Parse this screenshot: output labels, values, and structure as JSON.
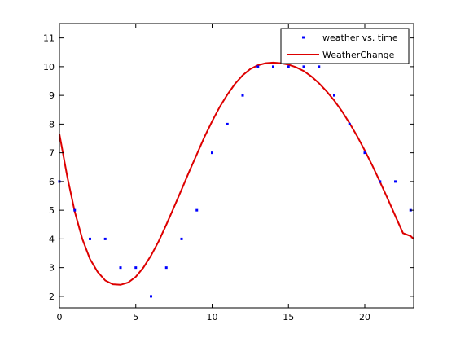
{
  "chart_data": {
    "type": "scatter",
    "title": "",
    "xlabel": "",
    "ylabel": "",
    "xlim": [
      0,
      23.2
    ],
    "ylim": [
      1.6,
      11.5
    ],
    "x_ticks": [
      0,
      5,
      10,
      15,
      20
    ],
    "y_ticks": [
      2,
      3,
      4,
      5,
      6,
      7,
      8,
      9,
      10,
      11
    ],
    "grid": false,
    "legend_position": "top-right",
    "series": [
      {
        "name": "weather vs. time",
        "type": "scatter",
        "color": "#0000ff",
        "x": [
          0,
          1,
          2,
          3,
          4,
          5,
          6,
          7,
          8,
          9,
          10,
          11,
          12,
          13,
          14,
          15,
          16,
          17,
          18,
          19,
          20,
          21,
          22,
          23
        ],
        "y": [
          6,
          5,
          4,
          4,
          3,
          3,
          2,
          3,
          4,
          5,
          7,
          8,
          9,
          10,
          10,
          10,
          10,
          10,
          9,
          8,
          7,
          6,
          6,
          5
        ]
      },
      {
        "name": "WeatherChange",
        "type": "line",
        "color": "#dd0000",
        "x": [
          0,
          0.5,
          1,
          1.5,
          2,
          2.5,
          3,
          3.5,
          4,
          4.5,
          5,
          5.5,
          6,
          6.5,
          7,
          7.5,
          8,
          8.5,
          9,
          9.5,
          10,
          10.5,
          11,
          11.5,
          12,
          12.5,
          13,
          13.5,
          14,
          14.5,
          15,
          15.5,
          16,
          16.5,
          17,
          17.5,
          18,
          18.5,
          19,
          19.5,
          20,
          20.5,
          21,
          21.5,
          22,
          22.5,
          23,
          23.2
        ],
        "y": [
          7.65,
          6.2,
          4.95,
          4.0,
          3.3,
          2.85,
          2.55,
          2.42,
          2.4,
          2.48,
          2.68,
          3.0,
          3.42,
          3.92,
          4.5,
          5.1,
          5.72,
          6.35,
          6.95,
          7.55,
          8.1,
          8.6,
          9.03,
          9.4,
          9.7,
          9.92,
          10.05,
          10.12,
          10.14,
          10.12,
          10.07,
          9.98,
          9.85,
          9.66,
          9.42,
          9.14,
          8.82,
          8.45,
          8.03,
          7.58,
          7.08,
          6.55,
          5.98,
          5.4,
          4.8,
          4.2,
          4.1,
          4.0
        ]
      }
    ]
  }
}
